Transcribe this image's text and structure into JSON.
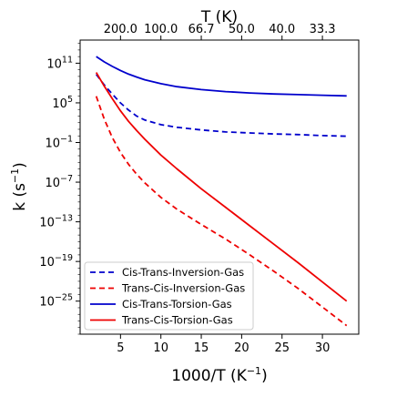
{
  "chart_data": {
    "type": "line",
    "xlabel": "1000/T (K",
    "xlabel_sup": "−1",
    "xlabel_close": ")",
    "ylabel": "k (s",
    "ylabel_sup": "−1",
    "ylabel_close": ")",
    "top_axis_label": "T (K)",
    "xlim": [
      0,
      34.5
    ],
    "ylim_log10": [
      -30,
      14.5
    ],
    "y_scale": "log",
    "grid": false,
    "legend_placement": "lower-left",
    "x_ticks": [
      5,
      10,
      15,
      20,
      25,
      30
    ],
    "x_tick_labels": [
      "5",
      "10",
      "15",
      "20",
      "25",
      "30"
    ],
    "y_ticks_log10": [
      11,
      5,
      -1,
      -7,
      -13,
      -19,
      -25
    ],
    "y_tick_labels": [
      {
        "base": "10",
        "exp": "11"
      },
      {
        "base": "10",
        "exp": "5"
      },
      {
        "base": "10",
        "exp": "−1"
      },
      {
        "base": "10",
        "exp": "−7"
      },
      {
        "base": "10",
        "exp": "−13"
      },
      {
        "base": "10",
        "exp": "−19"
      },
      {
        "base": "10",
        "exp": "−25"
      }
    ],
    "top_ticks_x": [
      5,
      10,
      15,
      20,
      25,
      30
    ],
    "top_tick_labels": [
      "200.0",
      "100.0",
      "66.7",
      "50.0",
      "40.0",
      "33.3"
    ],
    "series": [
      {
        "name": "Cis-Trans-Inversion-Gas",
        "color": "#0000cc",
        "dash": "dashed",
        "x": [
          2,
          3,
          4,
          5,
          6,
          7,
          8,
          10,
          12,
          15,
          18,
          21,
          24,
          27,
          30,
          33
        ],
        "log10_y": [
          9.3,
          7.7,
          6.3,
          5.0,
          3.9,
          3.0,
          2.4,
          1.7,
          1.3,
          0.9,
          0.6,
          0.45,
          0.3,
          0.2,
          0.05,
          -0.05
        ]
      },
      {
        "name": "Trans-Cis-Inversion-Gas",
        "color": "#ee0000",
        "dash": "dashed",
        "x": [
          2,
          3,
          4,
          5,
          6,
          7,
          8,
          10,
          12,
          15,
          18,
          21,
          24,
          27,
          30,
          33
        ],
        "log10_y": [
          6.0,
          2.5,
          -0.3,
          -2.5,
          -4.3,
          -5.8,
          -7.1,
          -9.3,
          -11.1,
          -13.4,
          -15.6,
          -18.0,
          -20.5,
          -23.1,
          -25.9,
          -28.7
        ]
      },
      {
        "name": "Cis-Trans-Torsion-Gas",
        "color": "#0000cc",
        "dash": "solid",
        "x": [
          2,
          3,
          4,
          5,
          6,
          7,
          8,
          10,
          12,
          15,
          18,
          21,
          24,
          27,
          30,
          33
        ],
        "log10_y": [
          12.0,
          11.2,
          10.5,
          9.9,
          9.35,
          8.9,
          8.5,
          7.9,
          7.45,
          7.0,
          6.7,
          6.5,
          6.35,
          6.25,
          6.15,
          6.05
        ]
      },
      {
        "name": "Trans-Cis-Torsion-Gas",
        "color": "#ee0000",
        "dash": "solid",
        "x": [
          2,
          3,
          4,
          5,
          6,
          7,
          8,
          10,
          12,
          15,
          18,
          21,
          24,
          27,
          30,
          33
        ],
        "log10_y": [
          9.6,
          7.5,
          5.6,
          3.8,
          2.2,
          0.8,
          -0.5,
          -2.9,
          -5.0,
          -8.0,
          -10.8,
          -13.6,
          -16.4,
          -19.2,
          -22.1,
          -25.0
        ]
      }
    ]
  }
}
